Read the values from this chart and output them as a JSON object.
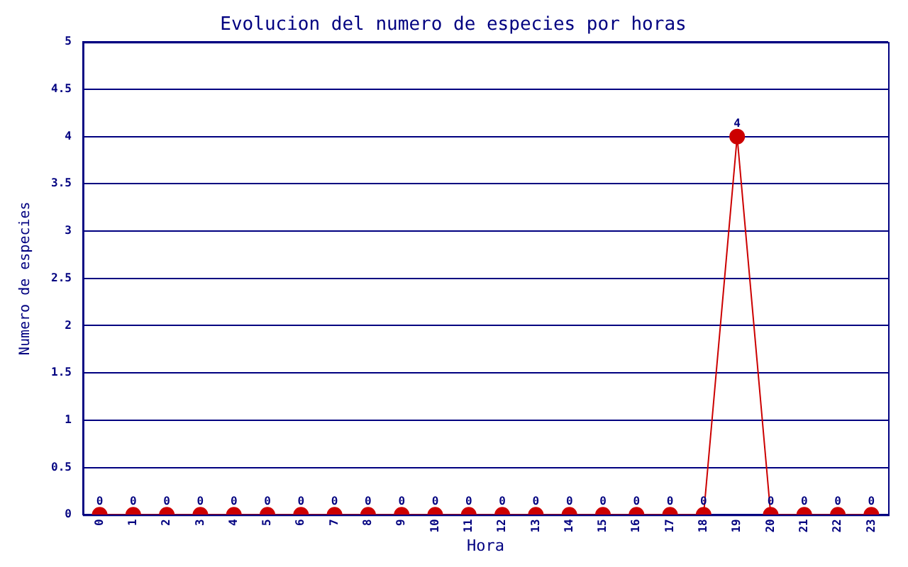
{
  "chart_data": {
    "type": "line",
    "title": "Evolucion del numero de especies por horas",
    "xlabel": "Hora",
    "ylabel": "Numero de especies",
    "categories": [
      "0",
      "1",
      "2",
      "3",
      "4",
      "5",
      "6",
      "7",
      "8",
      "9",
      "10",
      "11",
      "12",
      "13",
      "14",
      "15",
      "16",
      "17",
      "18",
      "19",
      "20",
      "21",
      "22",
      "23"
    ],
    "series": [
      {
        "color": "#cc0000",
        "values": [
          0,
          0,
          0,
          0,
          0,
          0,
          0,
          0,
          0,
          0,
          0,
          0,
          0,
          0,
          0,
          0,
          0,
          0,
          0,
          4,
          0,
          0,
          0,
          0
        ]
      }
    ],
    "ylim": [
      0,
      5
    ],
    "yticks": [
      0,
      0.5,
      1,
      1.5,
      2,
      2.5,
      3,
      3.5,
      4,
      4.5,
      5
    ],
    "grid": "y",
    "legend": false,
    "marker": "circle",
    "line_style": "solid",
    "data_labels": true
  }
}
